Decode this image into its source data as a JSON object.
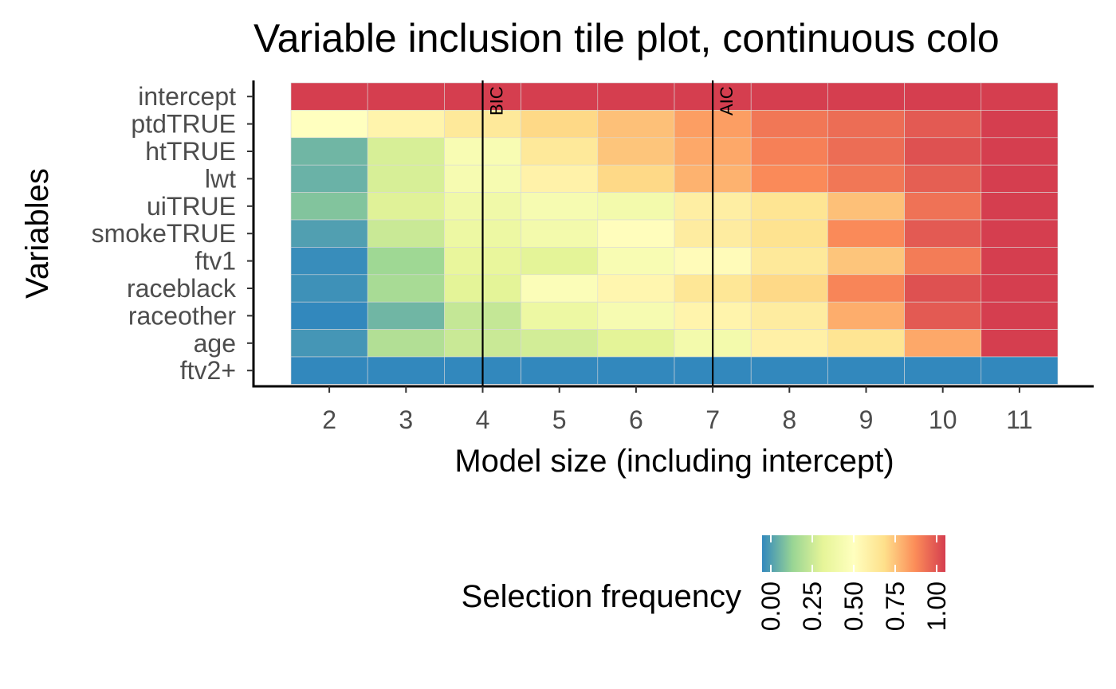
{
  "chart_data": {
    "type": "heatmap",
    "title": "Variable inclusion tile plot, continuous colo",
    "xlabel": "Model size (including intercept)",
    "ylabel": "Variables",
    "x": [
      2,
      3,
      4,
      5,
      6,
      7,
      8,
      9,
      10,
      11
    ],
    "xlim": [
      1.5,
      11.5
    ],
    "y": [
      "intercept",
      "ptdTRUE",
      "htTRUE",
      "lwt",
      "uiTRUE",
      "smokeTRUE",
      "ftv1",
      "raceblack",
      "raceother",
      "age",
      "ftv2+"
    ],
    "values": [
      [
        1.0,
        1.0,
        1.0,
        1.0,
        1.0,
        1.0,
        1.0,
        1.0,
        1.0,
        1.0
      ],
      [
        0.5,
        0.56,
        0.62,
        0.68,
        0.73,
        0.8,
        0.88,
        0.9,
        0.94,
        1.0
      ],
      [
        0.1,
        0.3,
        0.45,
        0.62,
        0.72,
        0.78,
        0.86,
        0.9,
        0.96,
        1.0
      ],
      [
        0.09,
        0.3,
        0.44,
        0.57,
        0.68,
        0.76,
        0.84,
        0.88,
        0.93,
        1.0
      ],
      [
        0.13,
        0.32,
        0.4,
        0.44,
        0.42,
        0.59,
        0.64,
        0.73,
        0.89,
        1.0
      ],
      [
        0.05,
        0.27,
        0.38,
        0.42,
        0.51,
        0.6,
        0.65,
        0.84,
        0.94,
        1.0
      ],
      [
        0.01,
        0.18,
        0.35,
        0.33,
        0.45,
        0.52,
        0.62,
        0.72,
        0.87,
        1.0
      ],
      [
        0.02,
        0.2,
        0.33,
        0.47,
        0.55,
        0.63,
        0.68,
        0.85,
        0.96,
        1.0
      ],
      [
        0.0,
        0.1,
        0.26,
        0.38,
        0.44,
        0.56,
        0.6,
        0.77,
        0.94,
        1.0
      ],
      [
        0.03,
        0.22,
        0.27,
        0.29,
        0.33,
        0.42,
        0.58,
        0.64,
        0.78,
        1.0
      ],
      [
        0.0,
        0.0,
        0.0,
        0.0,
        0.0,
        0.0,
        0.0,
        0.0,
        0.0,
        0.0
      ]
    ],
    "vlines": [
      {
        "x": 4,
        "label": "BIC"
      },
      {
        "x": 7,
        "label": "AIC"
      }
    ],
    "legend": {
      "title": "Selection frequency",
      "ticks": [
        "0.00",
        "0.25",
        "0.50",
        "0.75",
        "1.00"
      ],
      "tick_values": [
        0,
        0.25,
        0.5,
        0.75,
        1.0
      ],
      "placement": "bottom"
    },
    "colorscale": [
      "#3288bd",
      "#99d594",
      "#e6f598",
      "#ffffbf",
      "#fee08b",
      "#fc8d59",
      "#d53e4f"
    ],
    "grid": false
  }
}
